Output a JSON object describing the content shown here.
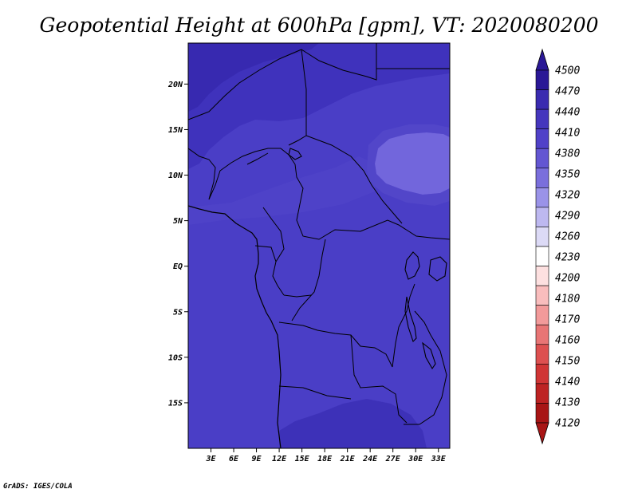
{
  "title": "Geopotential Height at 600hPa [gpm], VT: 2020080200",
  "credit": "GrADS: IGES/COLA",
  "map": {
    "lon_range": [
      0,
      34.5
    ],
    "lat_range": [
      -20.0,
      24.5
    ],
    "base_color": "#4a3ec6",
    "lat_ticks": [
      {
        "value": 20,
        "label": "20N"
      },
      {
        "value": 15,
        "label": "15N"
      },
      {
        "value": 10,
        "label": "10N"
      },
      {
        "value": 5,
        "label": "5N"
      },
      {
        "value": 0,
        "label": "EQ"
      },
      {
        "value": -5,
        "label": "5S"
      },
      {
        "value": -10,
        "label": "10S"
      },
      {
        "value": -15,
        "label": "15S"
      }
    ],
    "lon_ticks": [
      {
        "value": 3,
        "label": "3E"
      },
      {
        "value": 6,
        "label": "6E"
      },
      {
        "value": 9,
        "label": "9E"
      },
      {
        "value": 12,
        "label": "12E"
      },
      {
        "value": 15,
        "label": "15E"
      },
      {
        "value": 18,
        "label": "18E"
      },
      {
        "value": 21,
        "label": "21E"
      },
      {
        "value": 24,
        "label": "24E"
      },
      {
        "value": 27,
        "label": "27E"
      },
      {
        "value": 30,
        "label": "30E"
      },
      {
        "value": 33,
        "label": "33E"
      }
    ]
  },
  "colorbar": {
    "levels": [
      "4500",
      "4470",
      "4440",
      "4410",
      "4380",
      "4350",
      "4320",
      "4290",
      "4260",
      "4230",
      "4200",
      "4180",
      "4170",
      "4160",
      "4150",
      "4140",
      "4130",
      "4120"
    ],
    "colors": [
      "#2a1896",
      "#3a2bb0",
      "#4536bd",
      "#5041c8",
      "#6356d2",
      "#7a6fdc",
      "#9a93e8",
      "#bdb8f0",
      "#dcdaf6",
      "#ffffff",
      "#fde0e0",
      "#f9bdbd",
      "#f29a9a",
      "#e87575",
      "#dd5050",
      "#d03535",
      "#bd2323",
      "#a81515"
    ]
  }
}
